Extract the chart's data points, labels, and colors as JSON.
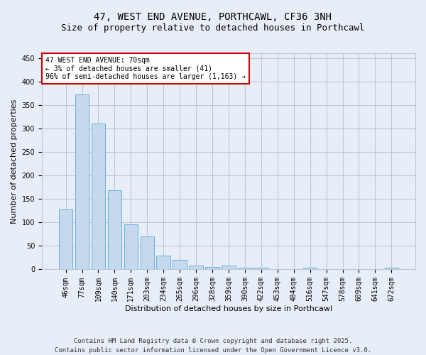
{
  "title": "47, WEST END AVENUE, PORTHCAWL, CF36 3NH",
  "subtitle": "Size of property relative to detached houses in Porthcawl",
  "xlabel": "Distribution of detached houses by size in Porthcawl",
  "ylabel": "Number of detached properties",
  "categories": [
    "46sqm",
    "77sqm",
    "109sqm",
    "140sqm",
    "171sqm",
    "203sqm",
    "234sqm",
    "265sqm",
    "296sqm",
    "328sqm",
    "359sqm",
    "390sqm",
    "422sqm",
    "453sqm",
    "484sqm",
    "516sqm",
    "547sqm",
    "578sqm",
    "609sqm",
    "641sqm",
    "672sqm"
  ],
  "values": [
    128,
    373,
    310,
    168,
    96,
    70,
    30,
    20,
    8,
    6,
    8,
    4,
    3,
    0,
    0,
    3,
    0,
    0,
    0,
    0,
    4
  ],
  "bar_color": "#c5d9ee",
  "bar_edge_color": "#6aaed6",
  "ylim": [
    0,
    460
  ],
  "yticks": [
    0,
    50,
    100,
    150,
    200,
    250,
    300,
    350,
    400,
    450
  ],
  "annotation_title": "47 WEST END AVENUE: 70sqm",
  "annotation_line1": "← 3% of detached houses are smaller (41)",
  "annotation_line2": "96% of semi-detached houses are larger (1,163) →",
  "annotation_box_facecolor": "#ffffff",
  "annotation_box_edgecolor": "#cc0000",
  "footer_line1": "Contains HM Land Registry data © Crown copyright and database right 2025.",
  "footer_line2": "Contains public sector information licensed under the Open Government Licence v3.0.",
  "bg_color": "#e8eef8",
  "plot_bg_color": "#e8eef8",
  "grid_color": "#b8c8dc",
  "title_fontsize": 10,
  "subtitle_fontsize": 9,
  "axis_label_fontsize": 8,
  "tick_fontsize": 7,
  "annotation_fontsize": 7,
  "footer_fontsize": 6.5
}
